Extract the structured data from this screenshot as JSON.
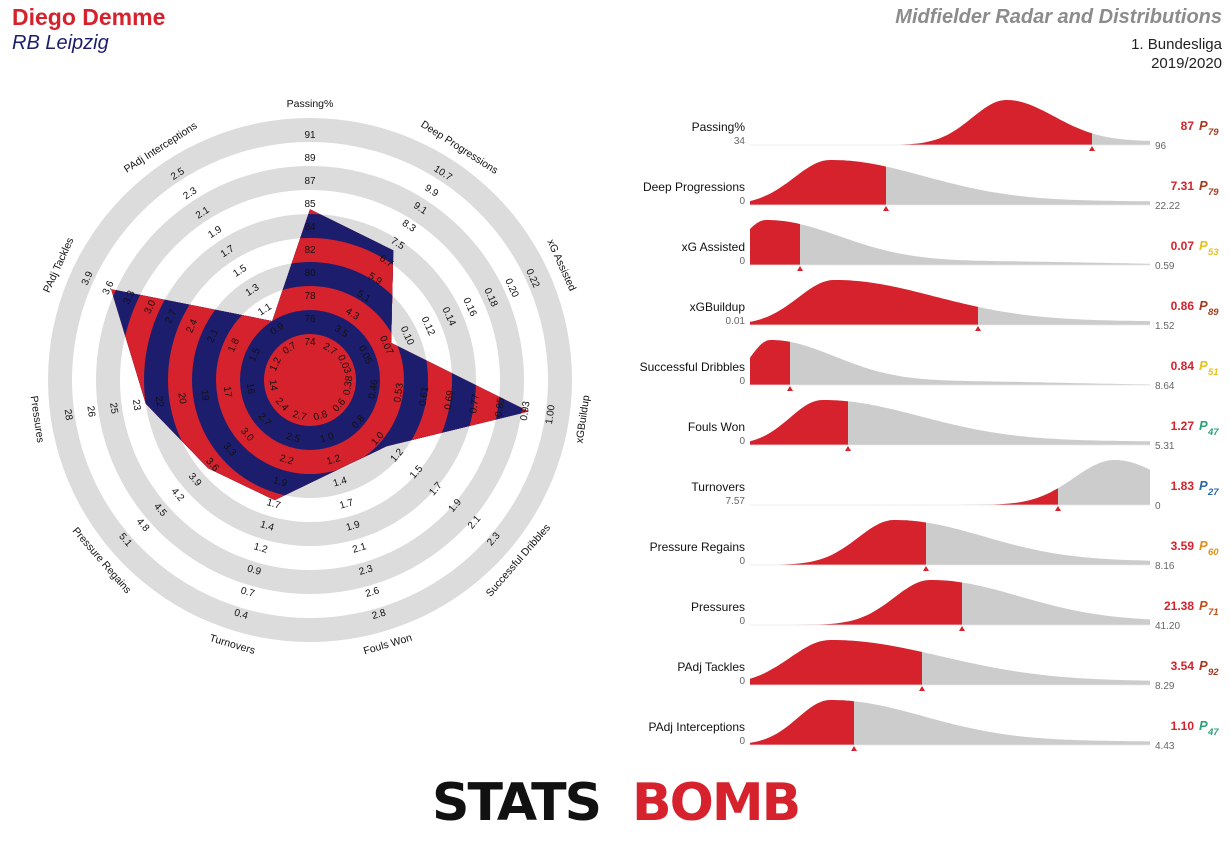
{
  "header": {
    "player": "Diego Demme",
    "team": "RB Leipzig",
    "title": "Midfielder Radar and Distributions",
    "league": "1. Bundesliga",
    "season": "2019/2020"
  },
  "logo": {
    "left": "STATS",
    "right": "BOMB"
  },
  "colors": {
    "red": "#d6222c",
    "navy": "#1d1d6e",
    "ring": "#dcdcdc",
    "grey": "#cccccc"
  },
  "chart_data": [
    {
      "type": "radar",
      "axes": [
        {
          "label": "Passing%",
          "ticks": [
            "74",
            "76",
            "78",
            "80",
            "82",
            "84",
            "85",
            "87",
            "89",
            "91"
          ],
          "value_fraction": 0.62
        },
        {
          "label": "Deep Progressions",
          "ticks": [
            "2.7",
            "3.5",
            "4.3",
            "5.1",
            "5.9",
            "6.7",
            "7.5",
            "8.3",
            "9.1",
            "9.9",
            "10.7"
          ],
          "value_fraction": 0.55
        },
        {
          "label": "xG Assisted",
          "ticks": [
            "0.03",
            "0.05",
            "0.07",
            "0.10",
            "0.12",
            "0.14",
            "0.16",
            "0.18",
            "0.20",
            "0.22"
          ],
          "value_fraction": 0.28
        },
        {
          "label": "xGBuildup",
          "ticks": [
            "0.38",
            "0.46",
            "0.53",
            "0.61",
            "0.69",
            "0.77",
            "0.85",
            "0.93",
            "1.00"
          ],
          "value_fraction": 0.83
        },
        {
          "label": "Successful Dribbles",
          "ticks": [
            "0.6",
            "0.8",
            "1.0",
            "1.2",
            "1.5",
            "1.7",
            "1.9",
            "2.1",
            "2.3"
          ],
          "value_fraction": 0.33
        },
        {
          "label": "Fouls Won",
          "ticks": [
            "0.8",
            "1.0",
            "1.2",
            "1.4",
            "1.7",
            "1.9",
            "2.1",
            "2.3",
            "2.6",
            "2.8"
          ],
          "value_fraction": 0.3
        },
        {
          "label": "Turnovers",
          "ticks": [
            "2.7",
            "2.5",
            "2.2",
            "1.9",
            "1.7",
            "1.4",
            "1.2",
            "0.9",
            "0.7",
            "0.4"
          ],
          "value_fraction": 0.43
        },
        {
          "label": "Pressure Regains",
          "ticks": [
            "2.4",
            "2.7",
            "3.0",
            "3.3",
            "3.6",
            "3.9",
            "4.2",
            "4.5",
            "4.8",
            "5.1"
          ],
          "value_fraction": 0.47
        },
        {
          "label": "Pressures",
          "ticks": [
            "14",
            "16",
            "17",
            "19",
            "20",
            "22",
            "23",
            "25",
            "26",
            "28"
          ],
          "value_fraction": 0.6
        },
        {
          "label": "PAdj Tackles",
          "ticks": [
            "1.2",
            "1.5",
            "1.8",
            "2.1",
            "2.4",
            "2.7",
            "3.0",
            "3.3",
            "3.6",
            "3.9"
          ],
          "value_fraction": 0.82
        },
        {
          "label": "PAdj Interceptions",
          "ticks": [
            "0.7",
            "0.9",
            "1.1",
            "1.3",
            "1.5",
            "1.7",
            "1.9",
            "2.1",
            "2.3",
            "2.5"
          ],
          "value_fraction": 0.2
        }
      ]
    },
    {
      "type": "area",
      "metrics": [
        {
          "label": "Passing%",
          "min": "34",
          "max": "96",
          "value": "87",
          "percentile_label": "P",
          "percentile": "79",
          "pcolor": "#a63a1e",
          "pos": 0.855,
          "peak": 0.64,
          "spread": 0.085,
          "skew": 0.14,
          "start": 0.38
        },
        {
          "label": "Deep Progressions",
          "min": "0",
          "max": "22.22",
          "value": "7.31",
          "percentile_label": "P",
          "percentile": "79",
          "pcolor": "#a63a1e",
          "pos": 0.34,
          "peak": 0.2,
          "spread": 0.09,
          "skew": 0.55,
          "start": 0.0
        },
        {
          "label": "xG Assisted",
          "min": "0",
          "max": "0.59",
          "value": "0.07",
          "percentile_label": "P",
          "percentile": "53",
          "pcolor": "#e8c21a",
          "pos": 0.125,
          "peak": 0.04,
          "spread": 0.06,
          "skew": 0.7,
          "start": 0.0
        },
        {
          "label": "xGBuildup",
          "min": "0.01",
          "max": "1.52",
          "value": "0.86",
          "percentile_label": "P",
          "percentile": "89",
          "pcolor": "#a63a1e",
          "pos": 0.57,
          "peak": 0.21,
          "spread": 0.09,
          "skew": 0.6,
          "start": 0.0
        },
        {
          "label": "Successful Dribbles",
          "min": "0",
          "max": "8.64",
          "value": "0.84",
          "percentile_label": "P",
          "percentile": "51",
          "pcolor": "#e8c21a",
          "pos": 0.1,
          "peak": 0.05,
          "spread": 0.05,
          "skew": 0.75,
          "start": 0.0
        },
        {
          "label": "Fouls Won",
          "min": "0",
          "max": "5.31",
          "value": "1.27",
          "percentile_label": "P",
          "percentile": "47",
          "pcolor": "#2aa27a",
          "pos": 0.245,
          "peak": 0.18,
          "spread": 0.08,
          "skew": 0.7,
          "start": 0.0
        },
        {
          "label": "Turnovers",
          "min": "7.57",
          "max": "0",
          "value": "1.83",
          "percentile_label": "P",
          "percentile": "27",
          "pcolor": "#2a6aa0",
          "pos": 0.77,
          "peak": 0.91,
          "spread": 0.1,
          "skew": 0.08,
          "start": 0.34
        },
        {
          "label": "Pressure Regains",
          "min": "0",
          "max": "8.16",
          "value": "3.59",
          "percentile_label": "P",
          "percentile": "60",
          "pcolor": "#e0901a",
          "pos": 0.44,
          "peak": 0.36,
          "spread": 0.09,
          "skew": 0.5,
          "start": 0.08
        },
        {
          "label": "Pressures",
          "min": "0",
          "max": "41.20",
          "value": "21.38",
          "percentile_label": "P",
          "percentile": "71",
          "pcolor": "#c0501a",
          "pos": 0.53,
          "peak": 0.45,
          "spread": 0.09,
          "skew": 0.5,
          "start": 0.12
        },
        {
          "label": "PAdj Tackles",
          "min": "0",
          "max": "8.29",
          "value": "3.54",
          "percentile_label": "P",
          "percentile": "92",
          "pcolor": "#a63a1e",
          "pos": 0.43,
          "peak": 0.2,
          "spread": 0.1,
          "skew": 0.6,
          "start": 0.0
        },
        {
          "label": "PAdj Interceptions",
          "min": "0",
          "max": "4.43",
          "value": "1.10",
          "percentile_label": "P",
          "percentile": "47",
          "pcolor": "#2aa27a",
          "pos": 0.26,
          "peak": 0.2,
          "spread": 0.08,
          "skew": 0.65,
          "start": 0.0
        }
      ]
    }
  ]
}
